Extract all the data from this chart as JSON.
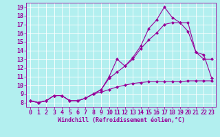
{
  "xlabel": "Windchill (Refroidissement éolien,°C)",
  "background_color": "#b2efef",
  "line_color": "#990099",
  "grid_color": "#ffffff",
  "xlim": [
    -0.5,
    23.5
  ],
  "ylim": [
    7.5,
    19.5
  ],
  "xticks": [
    0,
    1,
    2,
    3,
    4,
    5,
    6,
    7,
    8,
    9,
    10,
    11,
    12,
    13,
    14,
    15,
    16,
    17,
    18,
    19,
    20,
    21,
    22,
    23
  ],
  "yticks": [
    8,
    9,
    10,
    11,
    12,
    13,
    14,
    15,
    16,
    17,
    18,
    19
  ],
  "series": [
    {
      "x": [
        0,
        1,
        2,
        3,
        4,
        5,
        6,
        7,
        8,
        9,
        10,
        11,
        12,
        13,
        14,
        15,
        16,
        17,
        18,
        19,
        20,
        21,
        22,
        23
      ],
      "y": [
        8.2,
        8.0,
        8.2,
        8.8,
        8.8,
        8.2,
        8.2,
        8.5,
        9.0,
        9.2,
        9.5,
        9.8,
        10.0,
        10.2,
        10.3,
        10.4,
        10.4,
        10.4,
        10.4,
        10.4,
        10.5,
        10.5,
        10.5,
        10.5
      ]
    },
    {
      "x": [
        0,
        1,
        2,
        3,
        4,
        5,
        6,
        7,
        8,
        9,
        10,
        11,
        12,
        13,
        14,
        15,
        16,
        17,
        18,
        19,
        20,
        21,
        22,
        23
      ],
      "y": [
        8.2,
        8.0,
        8.2,
        8.8,
        8.8,
        8.2,
        8.2,
        8.5,
        9.0,
        9.5,
        10.8,
        11.5,
        12.2,
        13.0,
        14.2,
        15.2,
        16.0,
        17.0,
        17.2,
        17.2,
        16.2,
        13.8,
        13.0,
        13.0
      ]
    },
    {
      "x": [
        0,
        1,
        2,
        3,
        4,
        5,
        6,
        7,
        8,
        9,
        10,
        11,
        12,
        13,
        14,
        15,
        16,
        17,
        18,
        19,
        20,
        21,
        22,
        23
      ],
      "y": [
        8.2,
        8.0,
        8.2,
        8.8,
        8.8,
        8.2,
        8.2,
        8.5,
        9.0,
        9.5,
        11.0,
        13.0,
        12.2,
        13.2,
        14.5,
        16.5,
        17.5,
        19.0,
        17.8,
        17.2,
        17.2,
        13.8,
        13.5,
        10.8
      ]
    }
  ],
  "xlabel_fontsize": 6,
  "tick_fontsize": 6,
  "marker": "D",
  "markersize": 2,
  "linewidth": 0.8,
  "figsize": [
    3.2,
    2.0
  ],
  "dpi": 100
}
